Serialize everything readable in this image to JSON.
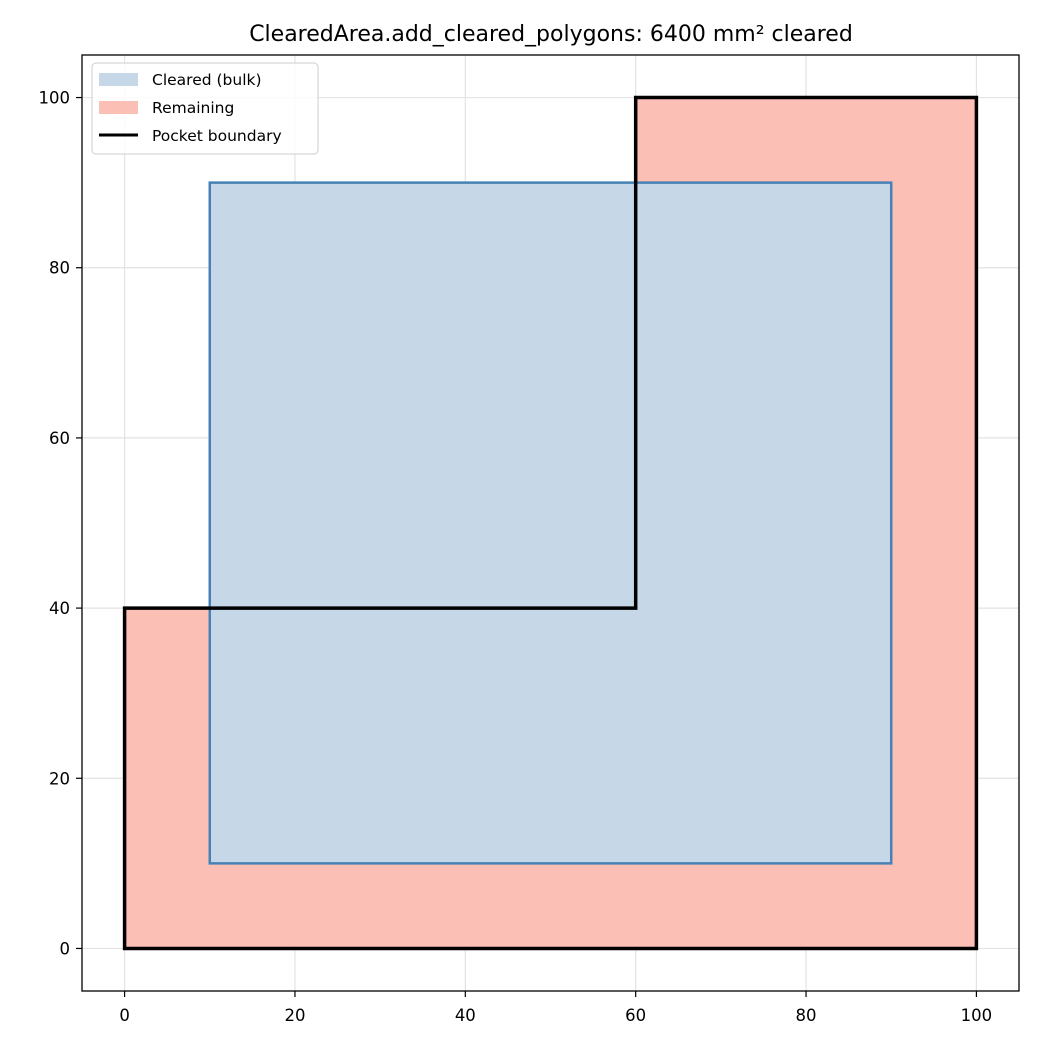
{
  "chart_data": {
    "type": "area",
    "title": "ClearedArea.add_cleared_polygons: 6400 mm² cleared",
    "xlabel": "",
    "ylabel": "",
    "xlim": [
      -5,
      105
    ],
    "ylim": [
      -5,
      105
    ],
    "xticks": [
      0,
      20,
      40,
      60,
      80,
      100
    ],
    "yticks": [
      0,
      20,
      40,
      60,
      80,
      100
    ],
    "xtick_labels": [
      "0",
      "20",
      "40",
      "60",
      "80",
      "100"
    ],
    "ytick_labels": [
      "0",
      "20",
      "40",
      "60",
      "80",
      "100"
    ],
    "grid": true,
    "legend_position": "top-left",
    "series": [
      {
        "name": "Remaining",
        "kind": "polygon-fill",
        "fill": "#fcbfb5",
        "stroke": "#ee6a51",
        "points": [
          [
            0,
            0
          ],
          [
            100,
            0
          ],
          [
            100,
            100
          ],
          [
            60,
            100
          ],
          [
            60,
            40
          ],
          [
            0,
            40
          ]
        ]
      },
      {
        "name": "Cleared (bulk)",
        "kind": "polygon-fill",
        "fill": "#c6d8e8",
        "stroke": "#4682b4",
        "points": [
          [
            10,
            10
          ],
          [
            90,
            10
          ],
          [
            90,
            90
          ],
          [
            10,
            90
          ]
        ]
      },
      {
        "name": "Pocket boundary",
        "kind": "polygon-outline",
        "stroke": "#000000",
        "points": [
          [
            0,
            0
          ],
          [
            100,
            0
          ],
          [
            100,
            100
          ],
          [
            60,
            100
          ],
          [
            60,
            40
          ],
          [
            0,
            40
          ]
        ]
      }
    ],
    "legend": [
      {
        "label": "Cleared (bulk)",
        "type": "patch",
        "color": "#c6d8e8"
      },
      {
        "label": "Remaining",
        "type": "patch",
        "color": "#fcbfb5"
      },
      {
        "label": "Pocket boundary",
        "type": "line",
        "color": "#000000"
      }
    ]
  }
}
